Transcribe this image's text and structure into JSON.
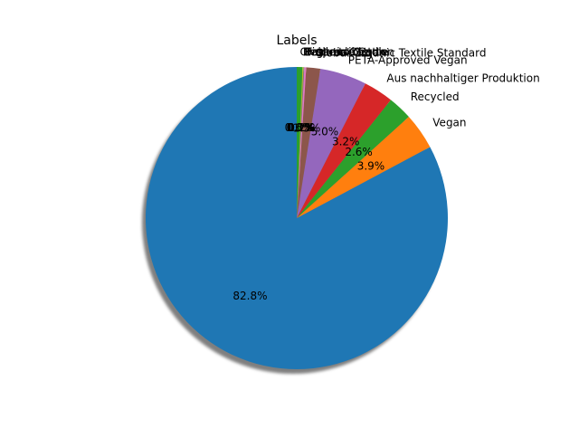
{
  "chart_data": {
    "type": "pie",
    "title": "Labels",
    "start_angle_deg": 90,
    "direction": "counterclockwise",
    "shadow": true,
    "slices": [
      {
        "label": "",
        "value": 82.8,
        "pct_label": "82.8%",
        "color": "#1f77b4"
      },
      {
        "label": "Vegan",
        "value": 3.9,
        "pct_label": "3.9%",
        "color": "#ff7f0e"
      },
      {
        "label": "Recycled",
        "value": 2.6,
        "pct_label": "2.6%",
        "color": "#2ca02c"
      },
      {
        "label": "Aus nachhaltiger Produktion",
        "value": 3.2,
        "pct_label": "3.2%",
        "color": "#d62728"
      },
      {
        "label": "PETA-Approved Vegan",
        "value": 5.0,
        "pct_label": "5.0%",
        "color": "#9467bd"
      },
      {
        "label": "Global Organic Textile Standard",
        "value": 1.5,
        "pct_label": "1.5%",
        "color": "#8c564b"
      },
      {
        "label": "Fairtrade Cotton",
        "value": 0.2,
        "pct_label": "0.2%",
        "color": "#e377c2"
      },
      {
        "label": "Bio",
        "value": 0.1,
        "pct_label": "0.1%",
        "color": "#7f7f7f"
      },
      {
        "label": "Organic Cotton",
        "value": 0.1,
        "pct_label": "0.1%",
        "color": "#bcbd22"
      },
      {
        "label": "Responsible",
        "value": 0.0,
        "pct_label": "0.0%",
        "color": "#17becf"
      },
      {
        "label": "Cradle to Cradle",
        "value": 0.6,
        "pct_label": "0.6%",
        "color": "#2ca02c"
      }
    ]
  }
}
